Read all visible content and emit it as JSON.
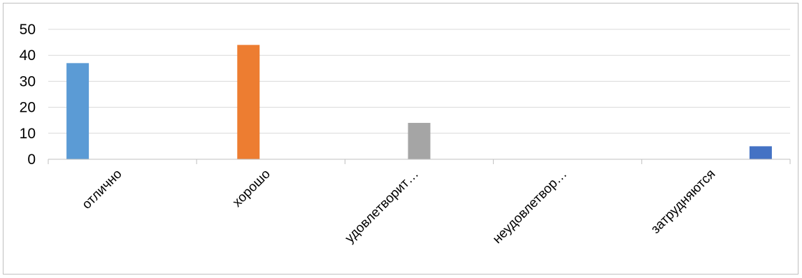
{
  "chart_data": {
    "type": "bar",
    "categories": [
      "отлично",
      "хорошо",
      "удовлетворит…",
      "неудовлетвор…",
      "затрудняются"
    ],
    "series": [
      {
        "values": [
          37,
          0,
          0,
          0,
          0
        ],
        "color": "#5b9bd5"
      },
      {
        "values": [
          0,
          44,
          0,
          0,
          0
        ],
        "color": "#ed7d31"
      },
      {
        "values": [
          0,
          0,
          14,
          0,
          0
        ],
        "color": "#a5a5a5"
      },
      {
        "values": [
          0,
          0,
          0,
          0,
          0
        ],
        "color": "#ffc000"
      },
      {
        "values": [
          0,
          0,
          0,
          0,
          5
        ],
        "color": "#4472c4"
      }
    ],
    "ylim": [
      0,
      50
    ],
    "yticks": [
      0,
      10,
      20,
      30,
      40,
      50
    ],
    "grid": true,
    "legend": "none"
  }
}
